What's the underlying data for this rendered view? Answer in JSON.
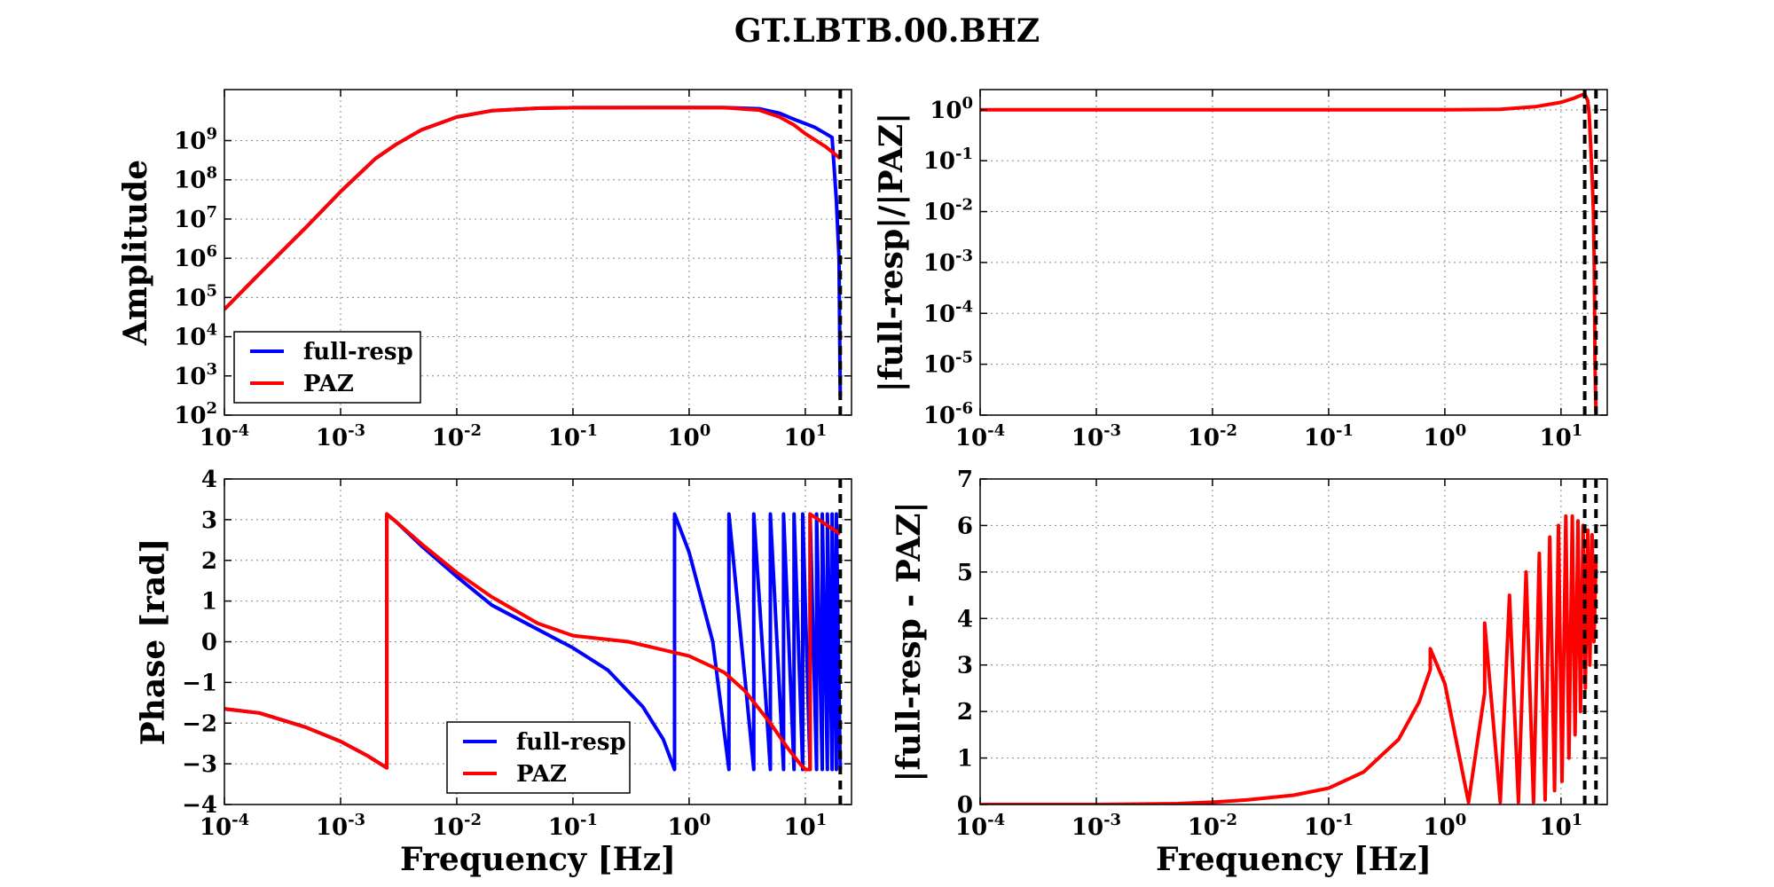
{
  "figure": {
    "title": "GT.LBTB.00.BHZ"
  },
  "colors": {
    "full_resp": "#0000ff",
    "paz": "#ff0000",
    "grid": "#888888",
    "marker": "#000000"
  },
  "chart_data": [
    {
      "id": "amplitude",
      "type": "line",
      "xscale": "log",
      "yscale": "log",
      "xlim": [
        0.0001,
        25
      ],
      "ylim": [
        100,
        20000000000.0
      ],
      "xlabel": "",
      "ylabel": "Amplitude",
      "xticks": [
        {
          "value": 0.0001,
          "base": "10",
          "exp": "-4"
        },
        {
          "value": 0.001,
          "base": "10",
          "exp": "-3"
        },
        {
          "value": 0.01,
          "base": "10",
          "exp": "-2"
        },
        {
          "value": 0.1,
          "base": "10",
          "exp": "-1"
        },
        {
          "value": 1,
          "base": "10",
          "exp": "0"
        },
        {
          "value": 10,
          "base": "10",
          "exp": "1"
        }
      ],
      "yticks": [
        {
          "value": 100,
          "base": "10",
          "exp": "2"
        },
        {
          "value": 1000,
          "base": "10",
          "exp": "3"
        },
        {
          "value": 10000,
          "base": "10",
          "exp": "4"
        },
        {
          "value": 100000,
          "base": "10",
          "exp": "5"
        },
        {
          "value": 1000000,
          "base": "10",
          "exp": "6"
        },
        {
          "value": 10000000,
          "base": "10",
          "exp": "7"
        },
        {
          "value": 100000000,
          "base": "10",
          "exp": "8"
        },
        {
          "value": 1000000000,
          "base": "10",
          "exp": "9"
        }
      ],
      "grid": true,
      "vlines": [
        20
      ],
      "legend": {
        "position": "lower-left",
        "entries": [
          "full-resp",
          "PAZ"
        ]
      },
      "series": [
        {
          "name": "full-resp",
          "color": "#0000ff",
          "points": [
            [
              0.0001,
              50000
            ],
            [
              0.0002,
              400000
            ],
            [
              0.0005,
              6000000
            ],
            [
              0.001,
              50000000
            ],
            [
              0.002,
              350000000
            ],
            [
              0.003,
              800000000
            ],
            [
              0.005,
              1900000000
            ],
            [
              0.01,
              4000000000
            ],
            [
              0.02,
              5800000000
            ],
            [
              0.05,
              6700000000
            ],
            [
              0.1,
              6900000000
            ],
            [
              0.5,
              7000000000
            ],
            [
              2,
              7000000000
            ],
            [
              4,
              6500000000
            ],
            [
              6,
              5000000000
            ],
            [
              8,
              3500000000
            ],
            [
              12,
              2200000000
            ],
            [
              15,
              1500000000
            ],
            [
              17,
              1200000000
            ],
            [
              18.5,
              30000000
            ],
            [
              19.5,
              1000000
            ],
            [
              20,
              300
            ]
          ]
        },
        {
          "name": "PAZ",
          "color": "#ff0000",
          "points": [
            [
              0.0001,
              50000
            ],
            [
              0.0002,
              400000
            ],
            [
              0.0005,
              6000000
            ],
            [
              0.001,
              50000000
            ],
            [
              0.002,
              350000000
            ],
            [
              0.003,
              800000000
            ],
            [
              0.005,
              1900000000
            ],
            [
              0.01,
              4000000000
            ],
            [
              0.02,
              5800000000
            ],
            [
              0.05,
              6700000000
            ],
            [
              0.1,
              6900000000
            ],
            [
              0.5,
              7000000000
            ],
            [
              2,
              6900000000
            ],
            [
              4,
              6000000000
            ],
            [
              6,
              4000000000
            ],
            [
              8,
              2500000000
            ],
            [
              10,
              1500000000
            ],
            [
              15,
              700000000
            ],
            [
              20,
              350000000
            ]
          ]
        }
      ]
    },
    {
      "id": "amp-ratio",
      "type": "line",
      "xscale": "log",
      "yscale": "log",
      "xlim": [
        0.0001,
        25
      ],
      "ylim": [
        1e-06,
        2.5
      ],
      "xlabel": "",
      "ylabel": "|full-resp|/|PAZ|",
      "xticks": [
        {
          "value": 0.0001,
          "base": "10",
          "exp": "-4"
        },
        {
          "value": 0.001,
          "base": "10",
          "exp": "-3"
        },
        {
          "value": 0.01,
          "base": "10",
          "exp": "-2"
        },
        {
          "value": 0.1,
          "base": "10",
          "exp": "-1"
        },
        {
          "value": 1,
          "base": "10",
          "exp": "0"
        },
        {
          "value": 10,
          "base": "10",
          "exp": "1"
        }
      ],
      "yticks": [
        {
          "value": 1e-06,
          "base": "10",
          "exp": "-6"
        },
        {
          "value": 1e-05,
          "base": "10",
          "exp": "-5"
        },
        {
          "value": 0.0001,
          "base": "10",
          "exp": "-4"
        },
        {
          "value": 0.001,
          "base": "10",
          "exp": "-3"
        },
        {
          "value": 0.01,
          "base": "10",
          "exp": "-2"
        },
        {
          "value": 0.1,
          "base": "10",
          "exp": "-1"
        },
        {
          "value": 1,
          "base": "10",
          "exp": "0"
        }
      ],
      "grid": true,
      "vlines": [
        16,
        20
      ],
      "legend": null,
      "series": [
        {
          "name": "ratio",
          "color": "#ff0000",
          "points": [
            [
              0.0001,
              1
            ],
            [
              1,
              1
            ],
            [
              3,
              1.02
            ],
            [
              6,
              1.15
            ],
            [
              10,
              1.4
            ],
            [
              13,
              1.7
            ],
            [
              15,
              1.95
            ],
            [
              16,
              2.05
            ],
            [
              17,
              1.5
            ],
            [
              17.5,
              0.8
            ],
            [
              18,
              0.2
            ],
            [
              18.5,
              0.05
            ],
            [
              19,
              0.01
            ],
            [
              19.3,
              0.001
            ],
            [
              19.6,
              1e-05
            ],
            [
              20,
              1.1e-06
            ]
          ]
        }
      ]
    },
    {
      "id": "phase",
      "type": "line",
      "xscale": "log",
      "yscale": "linear",
      "xlim": [
        0.0001,
        25
      ],
      "ylim": [
        -4,
        4
      ],
      "xlabel": "Frequency [Hz]",
      "ylabel": "Phase [rad]",
      "xticks": [
        {
          "value": 0.0001,
          "base": "10",
          "exp": "-4"
        },
        {
          "value": 0.001,
          "base": "10",
          "exp": "-3"
        },
        {
          "value": 0.01,
          "base": "10",
          "exp": "-2"
        },
        {
          "value": 0.1,
          "base": "10",
          "exp": "-1"
        },
        {
          "value": 1,
          "base": "10",
          "exp": "0"
        },
        {
          "value": 10,
          "base": "10",
          "exp": "1"
        }
      ],
      "yticks": [
        {
          "value": -4,
          "label": "−4"
        },
        {
          "value": -3,
          "label": "−3"
        },
        {
          "value": -2,
          "label": "−2"
        },
        {
          "value": -1,
          "label": "−1"
        },
        {
          "value": 0,
          "label": "0"
        },
        {
          "value": 1,
          "label": "1"
        },
        {
          "value": 2,
          "label": "2"
        },
        {
          "value": 3,
          "label": "3"
        },
        {
          "value": 4,
          "label": "4"
        }
      ],
      "grid": true,
      "vlines": [
        20
      ],
      "legend": {
        "position": "lower-center",
        "entries": [
          "full-resp",
          "PAZ"
        ]
      },
      "series": [
        {
          "name": "full-resp",
          "color": "#0000ff",
          "points": [
            [
              0.0001,
              -1.65
            ],
            [
              0.0002,
              -1.75
            ],
            [
              0.0005,
              -2.1
            ],
            [
              0.001,
              -2.45
            ],
            [
              0.0017,
              -2.8
            ],
            [
              0.0025,
              -3.1
            ],
            [
              0.0025,
              3.14
            ],
            [
              0.003,
              2.95
            ],
            [
              0.005,
              2.35
            ],
            [
              0.01,
              1.6
            ],
            [
              0.02,
              0.9
            ],
            [
              0.05,
              0.3
            ],
            [
              0.1,
              -0.15
            ],
            [
              0.2,
              -0.7
            ],
            [
              0.4,
              -1.6
            ],
            [
              0.6,
              -2.4
            ],
            [
              0.75,
              -3.14
            ],
            [
              0.75,
              3.14
            ],
            [
              1,
              2.2
            ],
            [
              1.6,
              0
            ],
            [
              2.2,
              -3.14
            ],
            [
              2.2,
              3.14
            ],
            [
              3.6,
              -3.14
            ],
            [
              3.6,
              3.14
            ],
            [
              5,
              -3.14
            ],
            [
              5,
              3.14
            ],
            [
              6.5,
              -3.14
            ],
            [
              6.5,
              3.14
            ],
            [
              8,
              -3.14
            ],
            [
              8,
              3.14
            ],
            [
              9.5,
              -3.14
            ],
            [
              9.5,
              3.14
            ],
            [
              11,
              -3.14
            ],
            [
              11,
              3.14
            ],
            [
              12.5,
              -3.14
            ],
            [
              12.5,
              3.14
            ],
            [
              14,
              -3.14
            ],
            [
              14,
              3.14
            ],
            [
              15.5,
              -3.14
            ],
            [
              15.5,
              3.14
            ],
            [
              17,
              -3.14
            ],
            [
              17,
              3.14
            ],
            [
              18.5,
              -3.14
            ],
            [
              18.5,
              3.14
            ],
            [
              20,
              -3.14
            ]
          ]
        },
        {
          "name": "PAZ",
          "color": "#ff0000",
          "points": [
            [
              0.0001,
              -1.65
            ],
            [
              0.0002,
              -1.75
            ],
            [
              0.0005,
              -2.1
            ],
            [
              0.001,
              -2.45
            ],
            [
              0.0017,
              -2.8
            ],
            [
              0.0025,
              -3.1
            ],
            [
              0.0025,
              3.14
            ],
            [
              0.003,
              2.95
            ],
            [
              0.005,
              2.4
            ],
            [
              0.01,
              1.7
            ],
            [
              0.02,
              1.1
            ],
            [
              0.05,
              0.45
            ],
            [
              0.1,
              0.15
            ],
            [
              0.3,
              0
            ],
            [
              0.6,
              -0.2
            ],
            [
              1,
              -0.35
            ],
            [
              2,
              -0.75
            ],
            [
              3,
              -1.2
            ],
            [
              5,
              -2
            ],
            [
              7,
              -2.6
            ],
            [
              9,
              -3
            ],
            [
              10,
              -3.14
            ],
            [
              11,
              -3.14
            ],
            [
              11,
              3.14
            ],
            [
              20,
              2.65
            ]
          ]
        }
      ]
    },
    {
      "id": "phase-diff",
      "type": "line",
      "xscale": "log",
      "yscale": "linear",
      "xlim": [
        0.0001,
        25
      ],
      "ylim": [
        0,
        7
      ],
      "xlabel": "Frequency [Hz]",
      "ylabel": "|full-resp - PAZ|",
      "xticks": [
        {
          "value": 0.0001,
          "base": "10",
          "exp": "-4"
        },
        {
          "value": 0.001,
          "base": "10",
          "exp": "-3"
        },
        {
          "value": 0.01,
          "base": "10",
          "exp": "-2"
        },
        {
          "value": 0.1,
          "base": "10",
          "exp": "-1"
        },
        {
          "value": 1,
          "base": "10",
          "exp": "0"
        },
        {
          "value": 10,
          "base": "10",
          "exp": "1"
        }
      ],
      "yticks": [
        {
          "value": 0,
          "label": "0"
        },
        {
          "value": 1,
          "label": "1"
        },
        {
          "value": 2,
          "label": "2"
        },
        {
          "value": 3,
          "label": "3"
        },
        {
          "value": 4,
          "label": "4"
        },
        {
          "value": 5,
          "label": "5"
        },
        {
          "value": 6,
          "label": "6"
        },
        {
          "value": 7,
          "label": "7"
        }
      ],
      "grid": true,
      "vlines": [
        16,
        20
      ],
      "legend": null,
      "series": [
        {
          "name": "difference",
          "color": "#ff0000",
          "points": [
            [
              0.0001,
              0
            ],
            [
              0.001,
              0
            ],
            [
              0.005,
              0.02
            ],
            [
              0.01,
              0.05
            ],
            [
              0.02,
              0.1
            ],
            [
              0.05,
              0.2
            ],
            [
              0.1,
              0.35
            ],
            [
              0.2,
              0.7
            ],
            [
              0.4,
              1.4
            ],
            [
              0.6,
              2.2
            ],
            [
              0.75,
              2.9
            ],
            [
              0.75,
              3.35
            ],
            [
              1,
              2.6
            ],
            [
              1.6,
              0.05
            ],
            [
              2.2,
              2.4
            ],
            [
              2.2,
              3.9
            ],
            [
              3,
              0.05
            ],
            [
              3.6,
              4.5
            ],
            [
              4.3,
              0.05
            ],
            [
              5,
              5
            ],
            [
              5.8,
              0.05
            ],
            [
              6.5,
              5.4
            ],
            [
              7.3,
              0.1
            ],
            [
              8,
              5.75
            ],
            [
              8.8,
              0.3
            ],
            [
              9.5,
              6
            ],
            [
              10.2,
              0.5
            ],
            [
              11,
              6.2
            ],
            [
              11.7,
              1
            ],
            [
              12.5,
              6.2
            ],
            [
              13.2,
              1.5
            ],
            [
              14,
              6.1
            ],
            [
              14.7,
              2
            ],
            [
              15.5,
              6
            ],
            [
              16.2,
              2.5
            ],
            [
              17,
              5.9
            ],
            [
              17.7,
              3
            ],
            [
              18.5,
              5.8
            ],
            [
              19.2,
              3.5
            ],
            [
              20,
              5.2
            ]
          ]
        }
      ]
    }
  ]
}
